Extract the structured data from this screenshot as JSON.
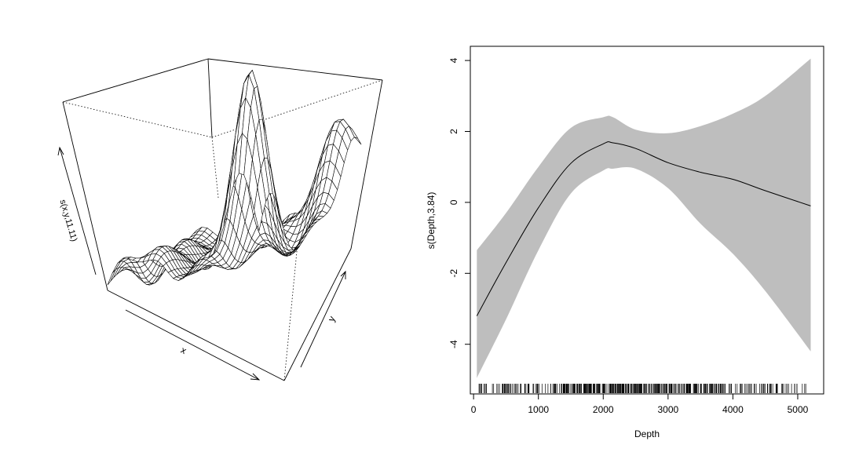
{
  "chart_data": [
    {
      "type": "surface",
      "xlabel": "x",
      "ylabel": "y",
      "zlabel": "s(x,y,11.11)",
      "grid_resolution": 30,
      "description_values": {
        "x_range": [
          0,
          1
        ],
        "y_range": [
          0,
          1
        ],
        "peaks": [
          {
            "x": 0.86,
            "y": 0.12,
            "height": 2.6,
            "spread": 0.022
          },
          {
            "x": 0.95,
            "y": 0.92,
            "height": 1.35,
            "spread": 0.03
          },
          {
            "x": 0.25,
            "y": 0.05,
            "height": 0.45,
            "spread": 0.03
          }
        ]
      }
    },
    {
      "type": "line",
      "xlabel": "Depth",
      "ylabel": "s(Depth,3.84)",
      "xlim": [
        -50,
        5400
      ],
      "ylim": [
        -5.4,
        4.4
      ],
      "xticks": [
        0,
        1000,
        2000,
        3000,
        4000,
        5000
      ],
      "yticks": [
        -4,
        -2,
        0,
        2,
        4
      ],
      "x": [
        50,
        500,
        1000,
        1500,
        2000,
        2150,
        2500,
        3000,
        3500,
        4000,
        4500,
        5200
      ],
      "fit": [
        -3.2,
        -1.7,
        -0.15,
        1.1,
        1.65,
        1.68,
        1.52,
        1.12,
        0.85,
        0.65,
        0.33,
        -0.1
      ],
      "upper": [
        -1.35,
        -0.3,
        1.0,
        2.1,
        2.4,
        2.4,
        2.05,
        1.95,
        2.15,
        2.5,
        3.0,
        4.05
      ],
      "lower": [
        -4.95,
        -3.3,
        -1.35,
        0.25,
        0.9,
        0.95,
        0.95,
        0.4,
        -0.6,
        -1.45,
        -2.5,
        -4.2
      ],
      "rug": {
        "from": 50,
        "to": 5150,
        "count": 420
      }
    }
  ]
}
